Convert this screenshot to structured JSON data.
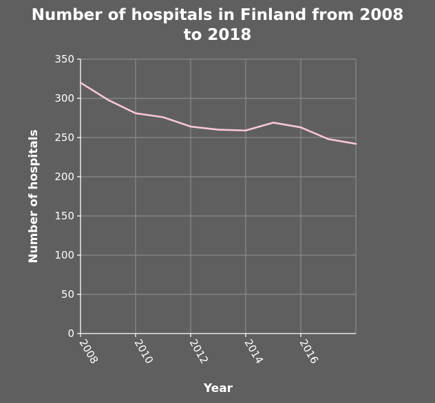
{
  "chart_data": {
    "type": "line",
    "title_line1": "Number of hospitals in Finland from 2008",
    "title_line2": "to 2018",
    "xlabel": "Year",
    "ylabel": "Number of hospitals",
    "xlim": [
      2008,
      2018
    ],
    "ylim": [
      0,
      350
    ],
    "xticks": [
      2008,
      2010,
      2012,
      2014,
      2016
    ],
    "xtick_labels": [
      "2008",
      "2010",
      "2012",
      "2014",
      "2016"
    ],
    "yticks": [
      0,
      50,
      100,
      150,
      200,
      250,
      300,
      350
    ],
    "ytick_labels": [
      "0",
      "50",
      "100",
      "150",
      "200",
      "250",
      "300",
      "350"
    ],
    "grid": true,
    "series": [
      {
        "x": [
          2008,
          2009,
          2010,
          2011,
          2012,
          2013,
          2014,
          2015,
          2016,
          2017,
          2018
        ],
        "values": [
          320,
          298,
          281,
          276,
          264,
          260,
          259,
          269,
          263,
          248,
          242
        ],
        "color": "#f8c8d8"
      }
    ],
    "colors": {
      "background": "#5f5f5f",
      "grid": "#8a8a8a",
      "axis": "#ffffff",
      "text": "#ffffff"
    }
  }
}
